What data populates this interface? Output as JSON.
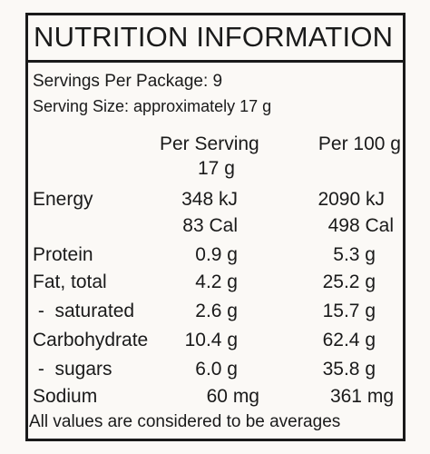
{
  "title": "NUTRITION INFORMATION",
  "servings_per_package": "Servings Per Package: 9",
  "serving_size": "Serving Size: approximately 17 g",
  "columns": {
    "per_serving": "Per Serving",
    "per_serving_amount": "17 g",
    "per_100g": "Per 100 g"
  },
  "rows": [
    {
      "label": "Energy",
      "per_serving": "348 kJ",
      "per_100g": "2090 kJ"
    },
    {
      "label": "",
      "per_serving": "83 Cal",
      "per_100g": "498 Cal"
    },
    {
      "label": "Protein",
      "per_serving": "0.9 g",
      "per_100g": "5.3 g"
    },
    {
      "label": "Fat, total",
      "per_serving": "4.2 g",
      "per_100g": "25.2 g"
    },
    {
      "label": " -  saturated",
      "per_serving": "2.6 g",
      "per_100g": "15.7 g"
    },
    {
      "label": "Carbohydrate",
      "per_serving": "10.4 g",
      "per_100g": "62.4 g"
    },
    {
      "label": " -  sugars",
      "per_serving": "6.0 g",
      "per_100g": "35.8 g"
    },
    {
      "label": "Sodium",
      "per_serving": "60 mg",
      "per_100g": "361 mg"
    }
  ],
  "footnote": "All values are considered to be averages"
}
